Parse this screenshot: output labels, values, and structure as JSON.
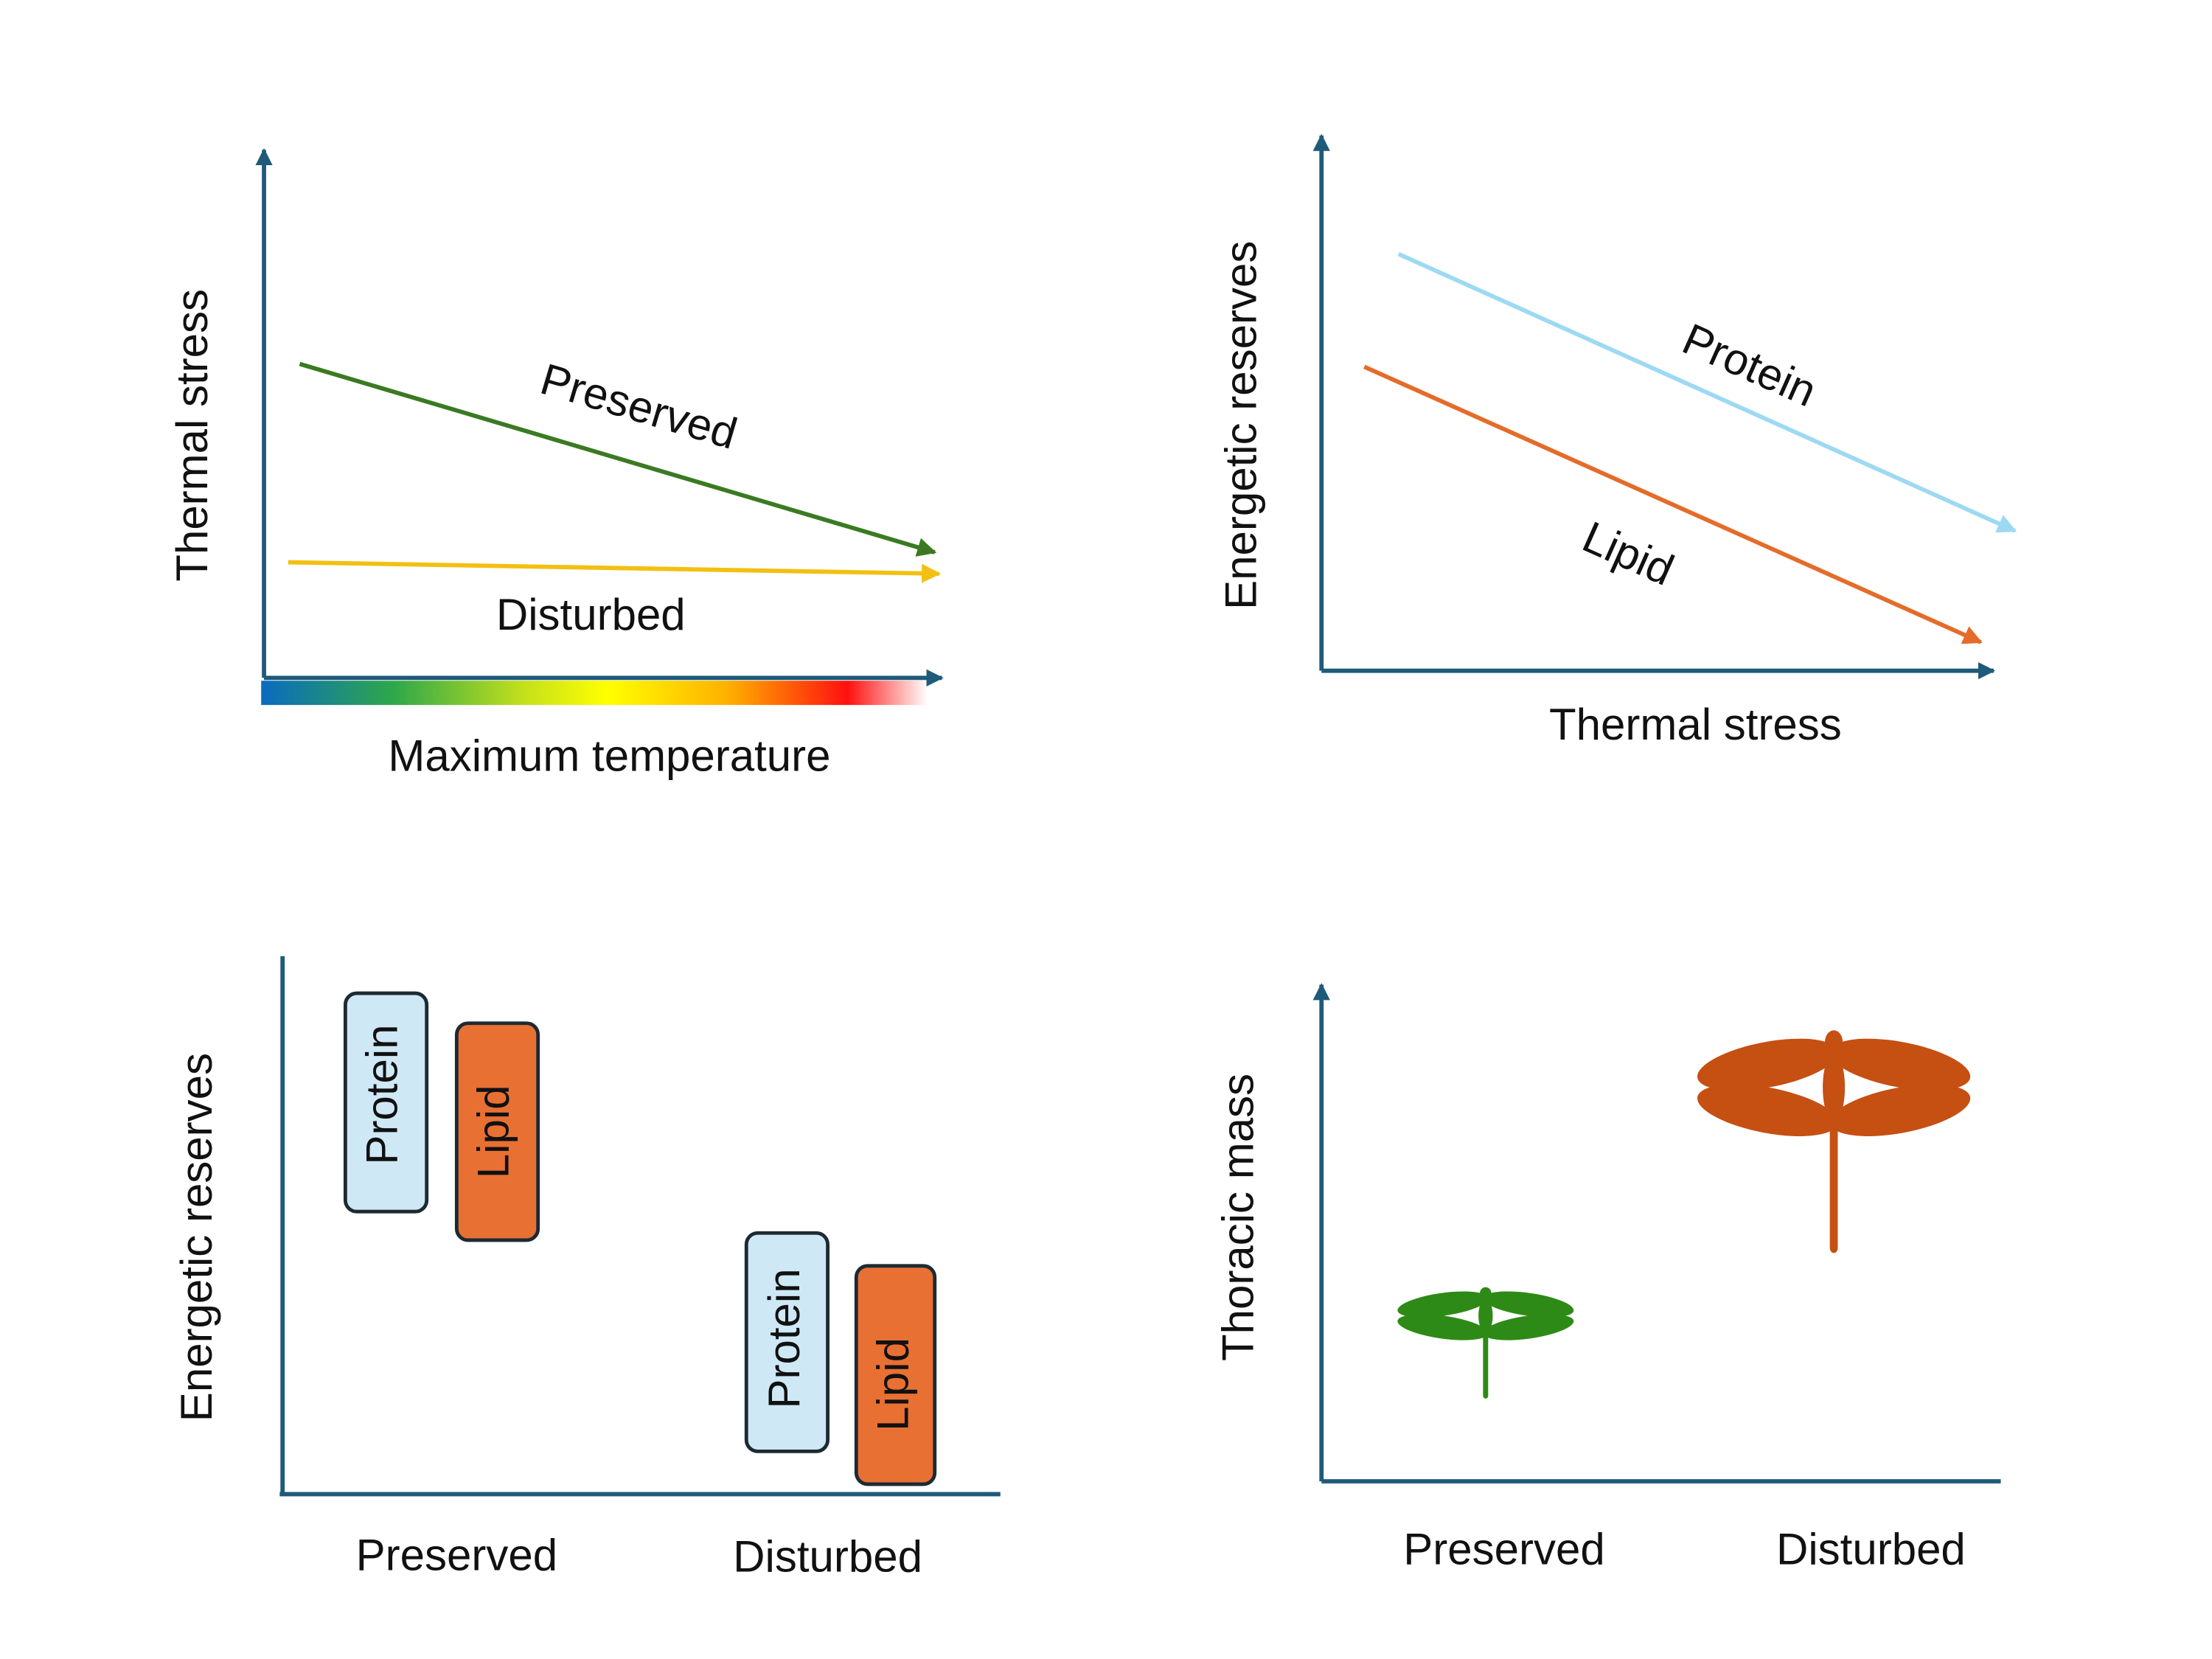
{
  "panels": [
    {
      "y_label": "Thermal stress",
      "x_label": "Maximum temperature",
      "lines": [
        {
          "label": "Preserved"
        },
        {
          "label": "Disturbed"
        }
      ]
    },
    {
      "y_label": "Energetic reserves",
      "x_label": "Thermal stress",
      "lines": [
        {
          "label": "Protein"
        },
        {
          "label": "Lipid"
        }
      ]
    },
    {
      "y_label": "Energetic reserves",
      "categories": [
        "Preserved",
        "Disturbed"
      ],
      "boxes": [
        "Protein",
        "Lipid",
        "Protein",
        "Lipid"
      ]
    },
    {
      "y_label": "Thoracic mass",
      "categories": [
        "Preserved",
        "Disturbed"
      ]
    }
  ]
}
